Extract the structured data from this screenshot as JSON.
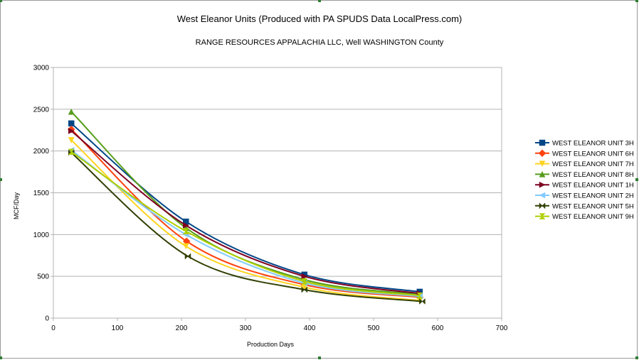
{
  "chart_data": {
    "type": "line",
    "title": "West Eleanor Units (Produced with PA SPUDS Data LocalPress.com)",
    "subtitle": "RANGE RESOURCES APPALACHIA LLC, Well  WASHINGTON County",
    "xlabel": "Production Days",
    "ylabel": "MCF/Day",
    "xlim": [
      0,
      700
    ],
    "ylim": [
      0,
      3000
    ],
    "xticks": [
      "0",
      "100",
      "200",
      "300",
      "400",
      "500",
      "600",
      "700"
    ],
    "yticks": [
      "0",
      "500",
      "1000",
      "1500",
      "2000",
      "2500",
      "3000"
    ],
    "grid": "horizontal",
    "legend_position": "right",
    "series": [
      {
        "name": "WEST ELEANOR UNIT 3H",
        "color": "#004586",
        "marker": "square",
        "points": [
          [
            28,
            2330
          ],
          [
            207,
            1155
          ],
          [
            392,
            520
          ],
          [
            572,
            315
          ]
        ]
      },
      {
        "name": "WEST ELEANOR UNIT 6H",
        "color": "#ff420e",
        "marker": "diamond",
        "points": [
          [
            28,
            2260
          ],
          [
            208,
            920
          ],
          [
            392,
            400
          ],
          [
            572,
            250
          ]
        ]
      },
      {
        "name": "WEST ELEANOR UNIT 7H",
        "color": "#ffd320",
        "marker": "triangle-down",
        "points": [
          [
            28,
            2130
          ],
          [
            207,
            860
          ],
          [
            392,
            370
          ],
          [
            572,
            210
          ]
        ]
      },
      {
        "name": "WEST ELEANOR UNIT 8H",
        "color": "#579d1c",
        "marker": "triangle-up",
        "points": [
          [
            28,
            2470
          ],
          [
            207,
            1080
          ],
          [
            392,
            460
          ],
          [
            572,
            285
          ]
        ]
      },
      {
        "name": "WEST ELEANOR UNIT 1H",
        "color": "#7e0021",
        "marker": "triangle-right",
        "points": [
          [
            28,
            2240
          ],
          [
            207,
            1110
          ],
          [
            392,
            500
          ],
          [
            572,
            295
          ]
        ]
      },
      {
        "name": "WEST ELEANOR UNIT 2H",
        "color": "#83caff",
        "marker": "triangle-left",
        "points": [
          [
            28,
            2010
          ],
          [
            207,
            1000
          ],
          [
            392,
            420
          ],
          [
            572,
            260
          ]
        ]
      },
      {
        "name": "WEST ELEANOR UNIT 5H",
        "color": "#314004",
        "marker": "bowtie",
        "points": [
          [
            28,
            1980
          ],
          [
            210,
            740
          ],
          [
            392,
            340
          ],
          [
            576,
            200
          ]
        ]
      },
      {
        "name": "WEST ELEANOR UNIT 9H",
        "color": "#aecf00",
        "marker": "hourglass",
        "points": [
          [
            28,
            1990
          ],
          [
            207,
            1040
          ],
          [
            392,
            440
          ],
          [
            572,
            270
          ]
        ]
      }
    ]
  }
}
